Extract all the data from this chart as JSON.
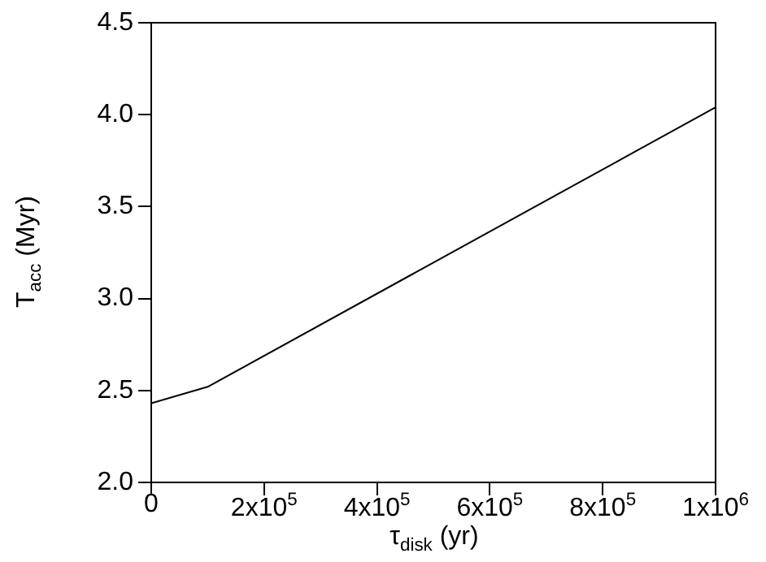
{
  "chart_data": {
    "type": "line",
    "xlabel": "τ$_{disk}$ (yr)",
    "ylabel": "T$_{acc}$ (Myr)",
    "x": [
      0,
      100000,
      1000000
    ],
    "series": [
      {
        "color": "#000000",
        "values": [
          2.43,
          2.52,
          4.04
        ]
      }
    ],
    "xlim": [
      0,
      1000000
    ],
    "ylim": [
      2.0,
      4.5
    ],
    "xticks": [
      0,
      {
        "value": 200000,
        "label": "2x10$^{5}$"
      },
      {
        "value": 400000,
        "label": "4x10$^{5}$"
      },
      {
        "value": 600000,
        "label": "6x10$^{5}$"
      },
      {
        "value": 800000,
        "label": "8x10$^{5}$"
      },
      {
        "value": 1000000,
        "label": "1x10$^{6}$"
      }
    ],
    "yticks": [
      {
        "value": 2.0,
        "label": "2.0"
      },
      {
        "value": 2.5,
        "label": "2.5"
      },
      {
        "value": 3.0,
        "label": "3.0"
      },
      {
        "value": 3.5,
        "label": "3.5"
      },
      {
        "value": 4.0,
        "label": "4.0"
      },
      {
        "value": 4.5,
        "label": "4.5"
      }
    ],
    "grid": false,
    "legend": false,
    "marker": "none",
    "line_style": "solid"
  }
}
